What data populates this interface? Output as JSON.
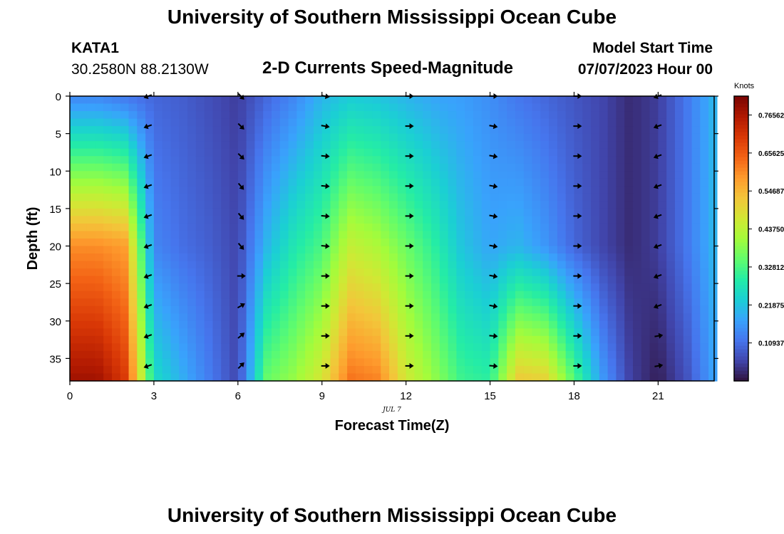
{
  "header": {
    "title": "University of Southern Mississippi Ocean Cube",
    "station": "KATA1",
    "coords": "30.2580N  88.2130W",
    "subtitle": "2-D Currents Speed-Magnitude",
    "model_start_label": "Model Start Time",
    "model_start_value": "07/07/2023 Hour 00"
  },
  "footer": {
    "title": "University of Southern Mississippi Ocean Cube"
  },
  "chart_data": {
    "type": "heatmap",
    "title": "2-D Currents Speed-Magnitude",
    "xlabel": "Forecast Time(Z)",
    "ylabel": "Depth (ft)",
    "date_label": "JUL 7",
    "xlim": [
      0,
      23
    ],
    "ylim": [
      0,
      38
    ],
    "y_inverted": true,
    "x_ticks": [
      0,
      3,
      6,
      9,
      12,
      15,
      18,
      21
    ],
    "x_tick_labels": [
      "0",
      "3",
      "6",
      "9",
      "12",
      "15",
      "18",
      "21"
    ],
    "y_ticks": [
      0,
      5,
      10,
      15,
      20,
      25,
      30,
      35
    ],
    "y_tick_labels": [
      "0",
      "5",
      "10",
      "15",
      "20",
      "25",
      "30",
      "35"
    ],
    "colorbar": {
      "units": "Knots",
      "min": 0,
      "max": 0.82,
      "tick_values": [
        0.76562,
        0.65625,
        0.54687,
        0.4375,
        0.32812,
        0.21875,
        0.10937
      ],
      "tick_labels": [
        "0.76562",
        "0.65625",
        "0.54687",
        "0.43750",
        "0.32812",
        "0.21875",
        "0.10937"
      ],
      "colormap": [
        "#30123b",
        "#4145ab",
        "#4675ed",
        "#39a2fc",
        "#1bcfd4",
        "#24eca6",
        "#61fc6c",
        "#a4fc3b",
        "#d1e834",
        "#f3c63a",
        "#fe9b2d",
        "#f36315",
        "#d93806",
        "#b11901",
        "#7a0403"
      ]
    },
    "speed_profiles_knots": {
      "hours": [
        0,
        1,
        2,
        3,
        4,
        5,
        6,
        7,
        8,
        9,
        10,
        11,
        12,
        13,
        14,
        15,
        16,
        17,
        18,
        19,
        20,
        21,
        22,
        23
      ],
      "surface": [
        0.14,
        0.14,
        0.12,
        0.1,
        0.09,
        0.07,
        0.05,
        0.1,
        0.14,
        0.2,
        0.23,
        0.22,
        0.2,
        0.18,
        0.17,
        0.15,
        0.12,
        0.1,
        0.08,
        0.06,
        0.03,
        0.05,
        0.12,
        0.2
      ],
      "ft20": [
        0.6,
        0.6,
        0.58,
        0.14,
        0.11,
        0.09,
        0.06,
        0.2,
        0.28,
        0.33,
        0.45,
        0.42,
        0.36,
        0.3,
        0.22,
        0.18,
        0.2,
        0.16,
        0.1,
        0.06,
        0.03,
        0.05,
        0.12,
        0.2
      ],
      "ft35": [
        0.75,
        0.75,
        0.68,
        0.24,
        0.18,
        0.12,
        0.06,
        0.33,
        0.38,
        0.45,
        0.6,
        0.58,
        0.45,
        0.38,
        0.3,
        0.28,
        0.47,
        0.45,
        0.3,
        0.15,
        0.05,
        0.02,
        0.08,
        0.18
      ]
    },
    "vectors": {
      "hours": [
        2.8,
        6.1,
        9.1,
        12.1,
        15.1,
        18.1,
        21.0
      ],
      "depths": [
        0,
        4,
        8,
        12,
        16,
        20,
        24,
        28,
        32,
        36
      ],
      "angles_deg": [
        [
          200,
          200,
          200,
          200,
          200,
          200,
          200,
          200,
          200,
          200
        ],
        [
          -45,
          -45,
          -45,
          -50,
          -50,
          -50,
          0,
          30,
          40,
          45
        ],
        [
          -10,
          -10,
          -5,
          -5,
          -5,
          -5,
          0,
          0,
          0,
          0
        ],
        [
          0,
          0,
          0,
          0,
          0,
          0,
          0,
          0,
          0,
          0
        ],
        [
          0,
          -10,
          -10,
          -10,
          -10,
          -10,
          -10,
          -10,
          -5,
          -5
        ],
        [
          0,
          0,
          0,
          0,
          0,
          0,
          0,
          0,
          0,
          0
        ],
        [
          200,
          200,
          200,
          200,
          200,
          200,
          200,
          200,
          10,
          10
        ]
      ]
    }
  }
}
